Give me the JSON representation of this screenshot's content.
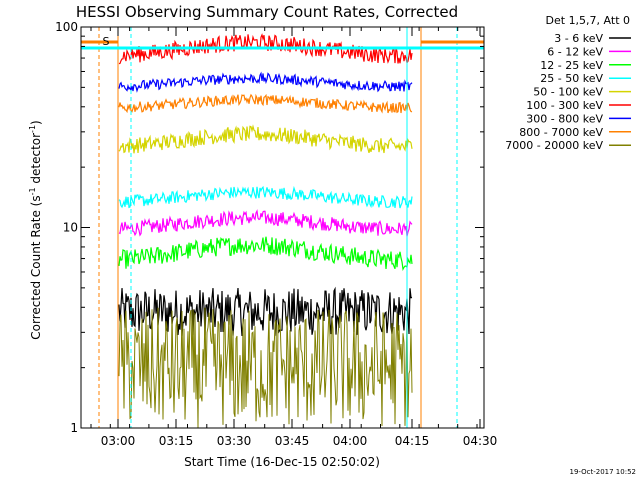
{
  "chart_data": {
    "type": "line",
    "title": "HESSI Observing Summary Count Rates, Corrected",
    "xlabel": "Start Time (16-Dec-15 02:50:02)",
    "ylabel": "Corrected Count Rate (s⁻¹ detector⁻¹)",
    "ylabel_main": "Corrected Count Rate (s",
    "ylabel_mid": " detector",
    "ylabel_end": ")",
    "ylabel_sup": "-1",
    "y_scale": "log",
    "ylim": [
      1,
      100
    ],
    "y_ticks": [
      "1",
      "10",
      "100"
    ],
    "x_ticks": [
      "03:00",
      "03:15",
      "03:30",
      "03:45",
      "04:00",
      "04:15",
      "04:30"
    ],
    "legend_title": "Det 1,5,7, Att 0",
    "legend_position": "right",
    "footer": "19-Oct-2017 10:52",
    "marker_label": "S",
    "series": [
      {
        "name": "3 - 6 keV",
        "color": "#000000",
        "band": [
          2.5,
          5.0
        ]
      },
      {
        "name": "6 - 12 keV",
        "color": "#ff00ff",
        "band": [
          8.6,
          12.5
        ]
      },
      {
        "name": "12 - 25 keV",
        "color": "#00ff00",
        "band": [
          5.8,
          9.5
        ]
      },
      {
        "name": "25 - 50 keV",
        "color": "#00ffff",
        "band": [
          12.0,
          16.5
        ]
      },
      {
        "name": "50 - 100 keV",
        "color": "#d4d400",
        "band": [
          22.0,
          33.0
        ]
      },
      {
        "name": "100 - 300 keV",
        "color": "#ff0000",
        "band": [
          62.0,
          95.0
        ]
      },
      {
        "name": "300 - 800 keV",
        "color": "#0000ff",
        "band": [
          46.0,
          60.0
        ]
      },
      {
        "name": "800 - 7000 keV",
        "color": "#ff8000",
        "band": [
          36.0,
          47.0
        ]
      },
      {
        "name": "7000 - 20000 keV",
        "color": "#808000",
        "band": [
          1.0,
          4.0
        ]
      }
    ]
  }
}
